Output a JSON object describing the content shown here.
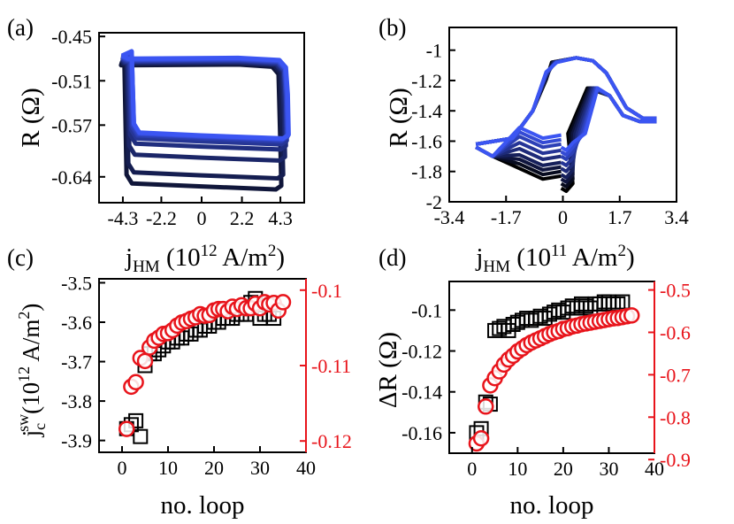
{
  "chart_data": [
    {
      "panel": "(a)",
      "type": "line",
      "xlabel": "j",
      "xlabel_sub": "HM",
      "xlabel_unit_pre": "(10",
      "xlabel_unit_exp": "12",
      "xlabel_unit_mid": " A/m",
      "xlabel_unit_exp2": "2",
      "xlabel_unit_post": ")",
      "ylabel": "R (Ω)",
      "xlim": [
        -5.6,
        5.6
      ],
      "ylim": [
        -0.675,
        -0.445
      ],
      "xticks": [
        -4.3,
        -2.2,
        0,
        2.2,
        4.3
      ],
      "xtick_labels": [
        "-4.3",
        "-2.2",
        "0",
        "2.2",
        "4.3"
      ],
      "yticks": [
        -0.45,
        -0.51,
        -0.57,
        -0.64
      ],
      "ytick_labels": [
        "-0.45",
        "-0.51",
        "-0.57",
        "-0.64"
      ],
      "grid": false,
      "colors": {
        "first_loop": "#10163a",
        "last_loop": "#3b55f2"
      },
      "loops": [
        {
          "high": -0.489,
          "low": -0.657,
          "left_sw": -4.1,
          "right_sw": 3.95
        },
        {
          "high": -0.487,
          "low": -0.642,
          "left_sw": -4.0,
          "right_sw": 4.05
        },
        {
          "high": -0.486,
          "low": -0.618,
          "left_sw": -3.95,
          "right_sw": 4.15
        },
        {
          "high": -0.485,
          "low": -0.603,
          "left_sw": -3.9,
          "right_sw": 4.2
        },
        {
          "high": -0.484,
          "low": -0.596,
          "left_sw": -3.85,
          "right_sw": 4.25
        },
        {
          "high": -0.483,
          "low": -0.592,
          "left_sw": -3.8,
          "right_sw": 4.25
        },
        {
          "high": -0.482,
          "low": -0.59,
          "left_sw": -3.75,
          "right_sw": 4.3
        },
        {
          "high": -0.481,
          "low": -0.589,
          "left_sw": -3.7,
          "right_sw": 4.3
        },
        {
          "high": -0.48,
          "low": -0.588,
          "left_sw": -3.7,
          "right_sw": 4.35
        }
      ]
    },
    {
      "panel": "(b)",
      "type": "line",
      "xlabel": "j",
      "xlabel_sub": "HM",
      "xlabel_unit_pre": "(10",
      "xlabel_unit_exp": "11",
      "xlabel_unit_mid": " A/m",
      "xlabel_unit_exp2": "2",
      "xlabel_unit_post": ")",
      "ylabel": "R (Ω)",
      "xlim": [
        -3.4,
        3.4
      ],
      "ylim": [
        -2.0,
        -0.85
      ],
      "xticks": [
        -3.4,
        -1.7,
        0,
        1.7,
        3.4
      ],
      "xtick_labels": [
        "-3.4",
        "-1.7",
        "0",
        "1.7",
        "3.4"
      ],
      "yticks": [
        -1.0,
        -1.2,
        -1.4,
        -1.6,
        -1.8,
        -2.0
      ],
      "ytick_labels": [
        "-1",
        "-1.2",
        "-1.4",
        "-1.6",
        "-1.8",
        "-2"
      ],
      "grid": false,
      "colors": {
        "first_loop": "#000000",
        "last_loop": "#3b55f2"
      },
      "loops": [
        {
          "low": -1.93,
          "shift": -0.45
        },
        {
          "low": -1.9,
          "shift": -0.38
        },
        {
          "low": -1.87,
          "shift": -0.31
        },
        {
          "low": -1.84,
          "shift": -0.24
        },
        {
          "low": -1.8,
          "shift": -0.17
        },
        {
          "low": -1.76,
          "shift": -0.1
        },
        {
          "low": -1.72,
          "shift": -0.04
        },
        {
          "low": -1.69,
          "shift": 0.02
        },
        {
          "low": -1.66,
          "shift": 0.07
        }
      ]
    },
    {
      "panel": "(c)",
      "type": "scatter",
      "xlabel": "no. loop",
      "ylabel_left": "j",
      "ylabel_left_sub": "c",
      "ylabel_left_sup": "sw",
      "ylabel_left_unit_pre": "(10",
      "ylabel_left_unit_exp": "12",
      "ylabel_left_unit_mid": " A/m",
      "ylabel_left_unit_exp2": "2",
      "ylabel_left_unit_post": ")",
      "xlim": [
        -5,
        40
      ],
      "ylim_left": [
        -3.93,
        -3.49
      ],
      "ylim_right": [
        -0.1215,
        -0.0985
      ],
      "xticks": [
        0,
        10,
        20,
        30,
        40
      ],
      "xtick_labels": [
        "0",
        "10",
        "20",
        "30",
        "40"
      ],
      "yticks_left": [
        -3.5,
        -3.6,
        -3.7,
        -3.8,
        -3.9
      ],
      "ytick_labels_left": [
        "-3.5",
        "-3.6",
        "-3.7",
        "-3.8",
        "-3.9"
      ],
      "yticks_right": [
        -0.1,
        -0.11,
        -0.12
      ],
      "ytick_labels_right": [
        "-0.1",
        "-0.11",
        "-0.12"
      ],
      "right_axis_color": "#e8141b",
      "series": [
        {
          "axis": "left",
          "marker": "square",
          "color": "#000000",
          "x": [
            1,
            2,
            3,
            4,
            5,
            6,
            7,
            8,
            9,
            10,
            11,
            12,
            13,
            14,
            15,
            16,
            17,
            18,
            19,
            20,
            21,
            22,
            23,
            24,
            25,
            26,
            27,
            28,
            29,
            30,
            31,
            32,
            33
          ],
          "values": [
            -3.87,
            -3.86,
            -3.85,
            -3.89,
            -3.71,
            -3.68,
            -3.68,
            -3.67,
            -3.66,
            -3.65,
            -3.65,
            -3.64,
            -3.64,
            -3.63,
            -3.63,
            -3.62,
            -3.62,
            -3.61,
            -3.61,
            -3.6,
            -3.6,
            -3.59,
            -3.59,
            -3.59,
            -3.58,
            -3.58,
            -3.58,
            -3.55,
            -3.54,
            -3.59,
            -3.58,
            -3.58,
            -3.59
          ]
        },
        {
          "axis": "right",
          "marker": "circle",
          "color": "#e8141b",
          "x": [
            1,
            2,
            3,
            4,
            5,
            6,
            7,
            8,
            9,
            10,
            11,
            12,
            13,
            14,
            15,
            16,
            17,
            18,
            19,
            20,
            21,
            22,
            23,
            24,
            25,
            26,
            27,
            28,
            29,
            30,
            31,
            32,
            33,
            34,
            35
          ],
          "values": [
            -0.1184,
            -0.1128,
            -0.1122,
            -0.109,
            -0.1094,
            -0.1076,
            -0.1067,
            -0.1063,
            -0.1058,
            -0.1057,
            -0.1053,
            -0.1047,
            -0.1043,
            -0.1041,
            -0.1038,
            -0.1036,
            -0.1032,
            -0.1034,
            -0.1033,
            -0.1027,
            -0.1025,
            -0.1025,
            -0.1028,
            -0.1022,
            -0.1025,
            -0.102,
            -0.1024,
            -0.1024,
            -0.1018,
            -0.1024,
            -0.1016,
            -0.1019,
            -0.1017,
            -0.1027,
            -0.1016
          ]
        }
      ]
    },
    {
      "panel": "(d)",
      "type": "scatter",
      "xlabel": "no. loop",
      "ylabel_left": "ΔR (Ω)",
      "xlim": [
        -5,
        40
      ],
      "ylim_left": [
        -0.17,
        -0.086
      ],
      "ylim_right": [
        -0.885,
        -0.48
      ],
      "xticks": [
        0,
        10,
        20,
        30,
        40
      ],
      "xtick_labels": [
        "0",
        "10",
        "20",
        "30",
        "40"
      ],
      "yticks_left": [
        -0.1,
        -0.12,
        -0.14,
        -0.16
      ],
      "ytick_labels_left": [
        "-0.1",
        "-0.12",
        "-0.14",
        "-0.16"
      ],
      "yticks_right": [
        -0.5,
        -0.6,
        -0.7,
        -0.8,
        -0.9
      ],
      "ytick_labels_right": [
        "-0.5",
        "-0.6",
        "-0.7",
        "-0.8",
        "-0.9"
      ],
      "right_axis_color": "#e8141b",
      "series": [
        {
          "axis": "left",
          "marker": "square",
          "color": "#000000",
          "x": [
            1,
            2,
            3,
            4,
            5,
            6,
            7,
            8,
            9,
            10,
            11,
            12,
            13,
            14,
            15,
            16,
            17,
            18,
            19,
            20,
            21,
            22,
            23,
            24,
            25,
            26,
            27,
            28,
            29,
            30,
            31,
            32,
            33
          ],
          "values": [
            -0.16,
            -0.158,
            -0.145,
            -0.146,
            -0.11,
            -0.109,
            -0.108,
            -0.11,
            -0.107,
            -0.106,
            -0.105,
            -0.104,
            -0.105,
            -0.104,
            -0.103,
            -0.104,
            -0.102,
            -0.101,
            -0.1,
            -0.101,
            -0.099,
            -0.098,
            -0.099,
            -0.097,
            -0.098,
            -0.099,
            -0.097,
            -0.097,
            -0.096,
            -0.096,
            -0.097,
            -0.097,
            -0.096
          ]
        },
        {
          "axis": "right",
          "marker": "circle",
          "color": "#e8141b",
          "x": [
            1,
            2,
            3,
            4,
            5,
            6,
            7,
            8,
            9,
            10,
            11,
            12,
            13,
            14,
            15,
            16,
            17,
            18,
            19,
            20,
            21,
            22,
            23,
            24,
            25,
            26,
            27,
            28,
            29,
            30,
            31,
            32,
            33,
            34,
            35
          ],
          "values": [
            -0.862,
            -0.85,
            -0.775,
            -0.725,
            -0.708,
            -0.692,
            -0.676,
            -0.664,
            -0.655,
            -0.645,
            -0.638,
            -0.63,
            -0.624,
            -0.619,
            -0.614,
            -0.609,
            -0.604,
            -0.6,
            -0.597,
            -0.592,
            -0.59,
            -0.586,
            -0.584,
            -0.581,
            -0.579,
            -0.577,
            -0.575,
            -0.573,
            -0.571,
            -0.569,
            -0.567,
            -0.566,
            -0.564,
            -0.562,
            -0.56
          ]
        }
      ]
    }
  ]
}
